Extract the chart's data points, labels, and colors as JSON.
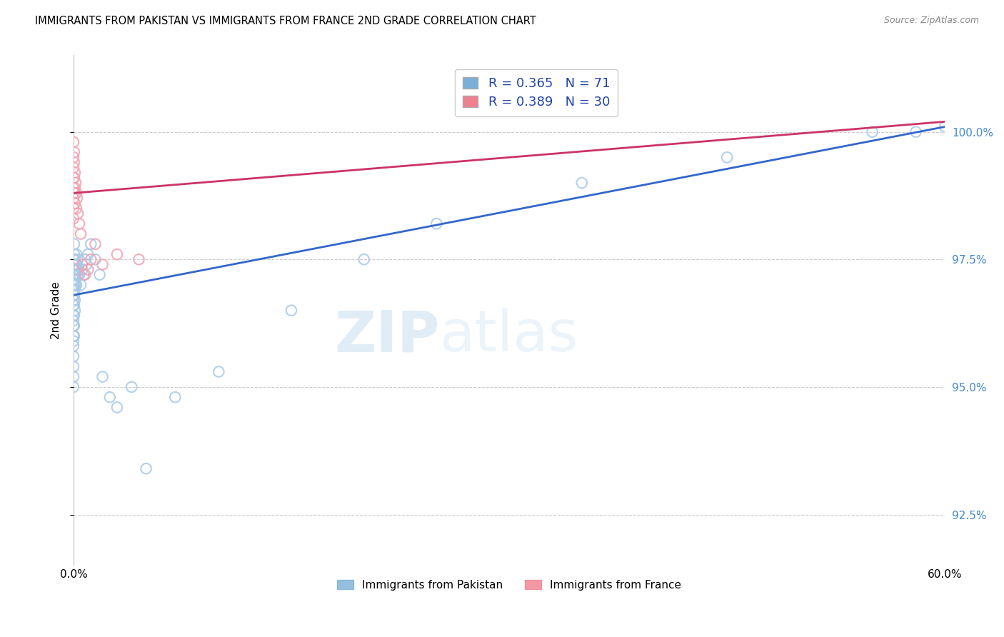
{
  "title": "IMMIGRANTS FROM PAKISTAN VS IMMIGRANTS FROM FRANCE 2ND GRADE CORRELATION CHART",
  "source": "Source: ZipAtlas.com",
  "ylabel": "2nd Grade",
  "ytick_vals": [
    92.5,
    95.0,
    97.5,
    100.0
  ],
  "xlim": [
    0.0,
    60.0
  ],
  "ylim": [
    91.5,
    101.5
  ],
  "legend1_label": "R = 0.365   N = 71",
  "legend2_label": "R = 0.389   N = 30",
  "legend_bottom_label1": "Immigrants from Pakistan",
  "legend_bottom_label2": "Immigrants from France",
  "blue_scatter_color": "#a8c8e8",
  "pink_scatter_color": "#f4a0b0",
  "blue_line_color": "#3366cc",
  "pink_line_color": "#cc3366",
  "blue_legend_color": "#7ab0d8",
  "pink_legend_color": "#f08090",
  "watermark_color": "#ddeeff",
  "pakistan_x": [
    0.0,
    0.0,
    0.0,
    0.0,
    0.0,
    0.0,
    0.0,
    0.0,
    0.0,
    0.0,
    0.0,
    0.0,
    0.0,
    0.0,
    0.0,
    0.0,
    0.0,
    0.0,
    0.0,
    0.0,
    0.05,
    0.05,
    0.05,
    0.05,
    0.05,
    0.05,
    0.05,
    0.05,
    0.05,
    0.05,
    0.1,
    0.1,
    0.1,
    0.1,
    0.1,
    0.1,
    0.15,
    0.15,
    0.15,
    0.2,
    0.2,
    0.2,
    0.25,
    0.3,
    0.3,
    0.35,
    0.4,
    0.5,
    0.6,
    0.7,
    0.8,
    0.9,
    1.0,
    1.2,
    1.5,
    1.8,
    2.0,
    2.5,
    3.0,
    4.0,
    5.0,
    7.0,
    10.0,
    15.0,
    20.0,
    25.0,
    35.0,
    45.0,
    55.0,
    58.0,
    60.0
  ],
  "pakistan_y": [
    97.5,
    97.4,
    97.3,
    97.2,
    97.1,
    97.0,
    96.9,
    96.8,
    96.7,
    96.6,
    96.4,
    96.3,
    96.2,
    96.0,
    95.9,
    95.8,
    95.6,
    95.4,
    95.2,
    95.0,
    97.8,
    97.6,
    97.4,
    97.2,
    97.0,
    96.8,
    96.6,
    96.4,
    96.2,
    96.0,
    97.5,
    97.3,
    97.1,
    96.9,
    96.7,
    96.5,
    97.4,
    97.2,
    97.0,
    97.6,
    97.3,
    97.0,
    97.4,
    97.5,
    97.2,
    97.3,
    97.2,
    97.0,
    97.3,
    97.2,
    97.5,
    97.4,
    97.6,
    97.8,
    97.5,
    97.2,
    95.2,
    94.8,
    94.6,
    95.0,
    93.4,
    94.8,
    95.3,
    96.5,
    97.5,
    98.2,
    99.0,
    99.5,
    100.0,
    100.0,
    100.1
  ],
  "france_x": [
    0.0,
    0.0,
    0.0,
    0.0,
    0.0,
    0.0,
    0.0,
    0.0,
    0.05,
    0.05,
    0.05,
    0.05,
    0.1,
    0.1,
    0.1,
    0.15,
    0.2,
    0.2,
    0.25,
    0.3,
    0.4,
    0.5,
    0.6,
    0.8,
    1.0,
    1.2,
    1.5,
    2.0,
    3.0,
    4.5
  ],
  "france_y": [
    99.8,
    99.5,
    99.3,
    99.1,
    98.9,
    98.7,
    98.5,
    98.3,
    99.6,
    99.4,
    99.1,
    98.8,
    99.2,
    98.9,
    98.6,
    99.0,
    98.8,
    98.5,
    98.7,
    98.4,
    98.2,
    98.0,
    97.4,
    97.2,
    97.3,
    97.5,
    97.8,
    97.4,
    97.6,
    97.5
  ],
  "pak_line_x": [
    0.0,
    60.0
  ],
  "pak_line_y": [
    96.8,
    100.1
  ],
  "fra_line_x": [
    0.0,
    60.0
  ],
  "fra_line_y": [
    98.8,
    100.2
  ]
}
